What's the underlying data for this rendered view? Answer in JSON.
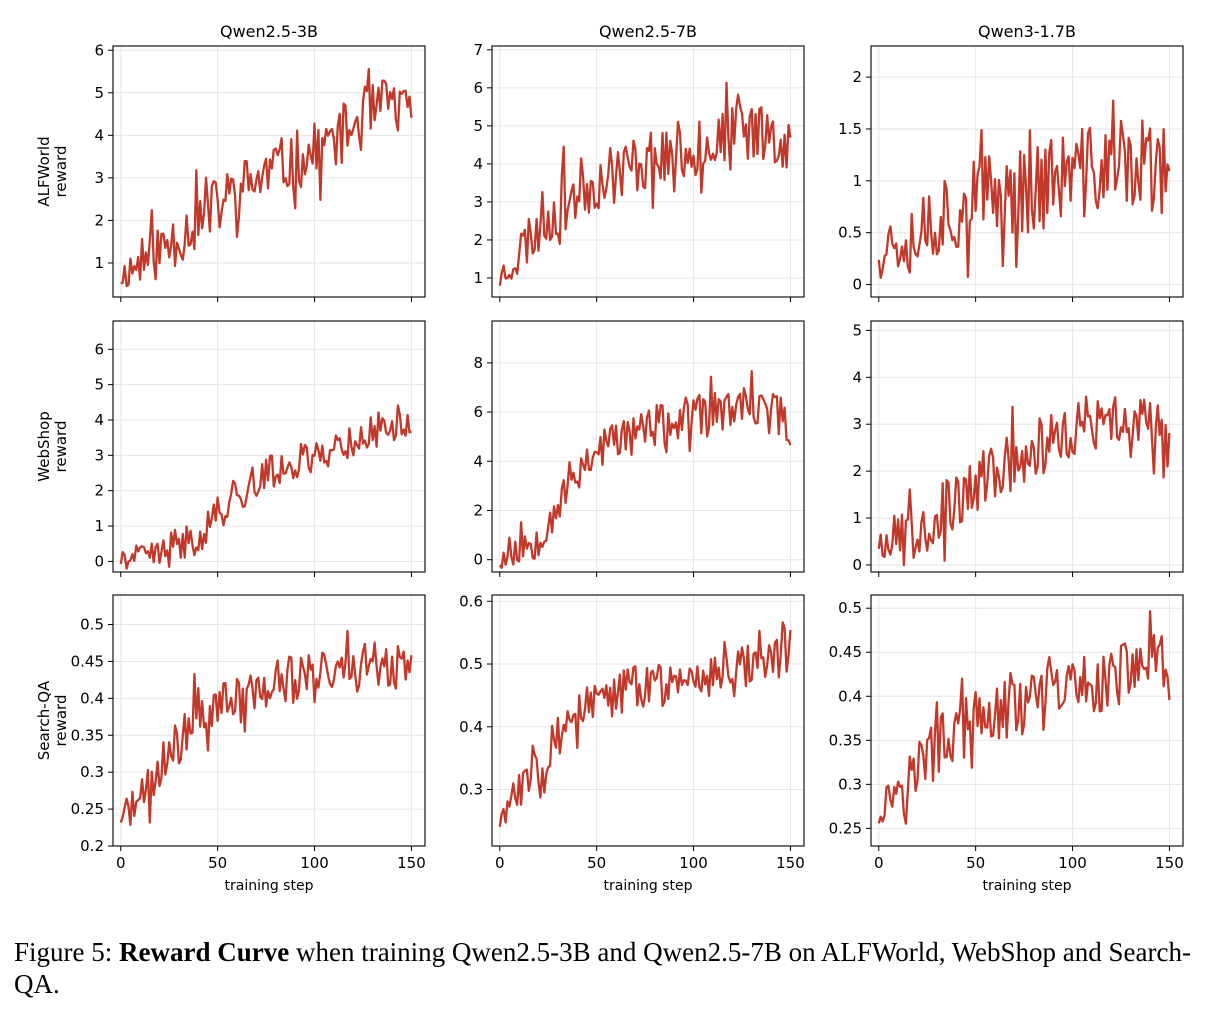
{
  "figure": {
    "caption_label": "Figure 5:",
    "caption_bold": "Reward Curve",
    "caption_text": " when training Qwen2.5-3B and Qwen2.5-7B on ALFWorld, WebShop and Search-QA."
  },
  "line_color": "#c0392b",
  "chart_data": [
    {
      "type": "line",
      "title": "Qwen2.5-3B",
      "ylabel": "ALFWorld reward",
      "xlabel": "",
      "xlim": [
        -4,
        157
      ],
      "ylim": [
        0.2,
        6.1
      ],
      "yticks": [
        1,
        2,
        3,
        4,
        5,
        6
      ],
      "xticks": [
        0,
        50,
        100,
        150
      ],
      "grid": true,
      "seed": 11,
      "series_anchors": [
        [
          0,
          0.7
        ],
        [
          20,
          1.3
        ],
        [
          40,
          2.0
        ],
        [
          60,
          2.7
        ],
        [
          80,
          3.2
        ],
        [
          100,
          3.6
        ],
        [
          120,
          4.2
        ],
        [
          140,
          4.8
        ],
        [
          150,
          4.3
        ]
      ],
      "noise": 0.7
    },
    {
      "type": "line",
      "title": "Qwen2.5-7B",
      "ylabel": "",
      "xlabel": "",
      "xlim": [
        -4,
        157
      ],
      "ylim": [
        0.5,
        7.1
      ],
      "yticks": [
        1,
        2,
        3,
        4,
        5,
        6,
        7
      ],
      "xticks": [
        0,
        50,
        100,
        150
      ],
      "grid": true,
      "seed": 23,
      "series_anchors": [
        [
          0,
          1.0
        ],
        [
          10,
          1.7
        ],
        [
          20,
          2.4
        ],
        [
          30,
          2.9
        ],
        [
          40,
          3.3
        ],
        [
          60,
          3.8
        ],
        [
          80,
          4.2
        ],
        [
          100,
          4.4
        ],
        [
          120,
          4.8
        ],
        [
          140,
          4.9
        ],
        [
          150,
          4.5
        ]
      ],
      "noise": 0.8
    },
    {
      "type": "line",
      "title": "Qwen3-1.7B",
      "ylabel": "",
      "xlabel": "",
      "xlim": [
        -4,
        157
      ],
      "ylim": [
        -0.12,
        2.3
      ],
      "yticks": [
        0.0,
        0.5,
        1.0,
        1.5,
        2.0
      ],
      "xticks": [
        0,
        50,
        100,
        150
      ],
      "grid": true,
      "seed": 37,
      "series_anchors": [
        [
          0,
          0.35
        ],
        [
          20,
          0.55
        ],
        [
          40,
          0.75
        ],
        [
          60,
          0.85
        ],
        [
          80,
          0.95
        ],
        [
          100,
          1.05
        ],
        [
          120,
          1.15
        ],
        [
          140,
          1.15
        ],
        [
          150,
          0.8
        ]
      ],
      "noise": 0.45
    },
    {
      "type": "line",
      "title": "",
      "ylabel": "WebShop reward",
      "xlabel": "",
      "xlim": [
        -4,
        157
      ],
      "ylim": [
        -0.3,
        6.8
      ],
      "yticks": [
        0,
        1,
        2,
        3,
        4,
        5,
        6
      ],
      "xticks": [
        0,
        50,
        100,
        150
      ],
      "grid": true,
      "seed": 41,
      "series_anchors": [
        [
          0,
          0.05
        ],
        [
          20,
          0.2
        ],
        [
          40,
          0.7
        ],
        [
          50,
          1.4
        ],
        [
          60,
          1.9
        ],
        [
          80,
          2.6
        ],
        [
          100,
          3.0
        ],
        [
          120,
          3.4
        ],
        [
          140,
          3.9
        ],
        [
          150,
          4.0
        ]
      ],
      "noise": 0.5
    },
    {
      "type": "line",
      "title": "",
      "ylabel": "",
      "xlabel": "",
      "xlim": [
        -4,
        157
      ],
      "ylim": [
        -0.5,
        9.7
      ],
      "yticks": [
        0,
        2,
        4,
        6,
        8
      ],
      "xticks": [
        0,
        50,
        100,
        150
      ],
      "grid": true,
      "seed": 53,
      "series_anchors": [
        [
          0,
          0.0
        ],
        [
          10,
          0.4
        ],
        [
          20,
          1.0
        ],
        [
          30,
          2.3
        ],
        [
          40,
          3.6
        ],
        [
          50,
          4.5
        ],
        [
          70,
          5.2
        ],
        [
          90,
          5.6
        ],
        [
          120,
          6.1
        ],
        [
          140,
          6.0
        ],
        [
          150,
          5.6
        ]
      ],
      "noise": 0.9
    },
    {
      "type": "line",
      "title": "",
      "ylabel": "",
      "xlabel": "",
      "xlim": [
        -4,
        157
      ],
      "ylim": [
        -0.15,
        5.2
      ],
      "yticks": [
        0,
        1,
        2,
        3,
        4,
        5
      ],
      "xticks": [
        0,
        50,
        100,
        150
      ],
      "grid": true,
      "seed": 67,
      "series_anchors": [
        [
          0,
          0.5
        ],
        [
          20,
          0.8
        ],
        [
          40,
          1.3
        ],
        [
          60,
          2.0
        ],
        [
          80,
          2.5
        ],
        [
          100,
          2.8
        ],
        [
          120,
          3.0
        ],
        [
          140,
          2.9
        ],
        [
          150,
          3.0
        ]
      ],
      "noise": 0.65
    },
    {
      "type": "line",
      "title": "",
      "ylabel": "Search-QA reward",
      "xlabel": "training step",
      "xlim": [
        -4,
        157
      ],
      "ylim": [
        0.2,
        0.54
      ],
      "yticks": [
        0.2,
        0.25,
        0.3,
        0.35,
        0.4,
        0.45,
        0.5
      ],
      "xticks": [
        0,
        50,
        100,
        150
      ],
      "grid": true,
      "seed": 71,
      "series_anchors": [
        [
          0,
          0.24
        ],
        [
          10,
          0.26
        ],
        [
          20,
          0.3
        ],
        [
          30,
          0.34
        ],
        [
          40,
          0.38
        ],
        [
          60,
          0.4
        ],
        [
          80,
          0.42
        ],
        [
          100,
          0.43
        ],
        [
          120,
          0.44
        ],
        [
          140,
          0.45
        ],
        [
          150,
          0.44
        ]
      ],
      "noise": 0.035
    },
    {
      "type": "line",
      "title": "",
      "ylabel": "",
      "xlabel": "training step",
      "xlim": [
        -4,
        157
      ],
      "ylim": [
        0.21,
        0.61
      ],
      "yticks": [
        0.3,
        0.4,
        0.5,
        0.6
      ],
      "xticks": [
        0,
        50,
        100,
        150
      ],
      "grid": true,
      "seed": 83,
      "series_anchors": [
        [
          0,
          0.25
        ],
        [
          10,
          0.3
        ],
        [
          20,
          0.35
        ],
        [
          40,
          0.42
        ],
        [
          60,
          0.45
        ],
        [
          80,
          0.47
        ],
        [
          100,
          0.48
        ],
        [
          120,
          0.5
        ],
        [
          140,
          0.51
        ],
        [
          150,
          0.53
        ]
      ],
      "noise": 0.04
    },
    {
      "type": "line",
      "title": "",
      "ylabel": "",
      "xlabel": "training step",
      "xlim": [
        -4,
        157
      ],
      "ylim": [
        0.23,
        0.515
      ],
      "yticks": [
        0.25,
        0.3,
        0.35,
        0.4,
        0.45,
        0.5
      ],
      "xticks": [
        0,
        50,
        100,
        150
      ],
      "grid": true,
      "seed": 97,
      "series_anchors": [
        [
          0,
          0.27
        ],
        [
          10,
          0.3
        ],
        [
          20,
          0.32
        ],
        [
          40,
          0.36
        ],
        [
          60,
          0.38
        ],
        [
          80,
          0.39
        ],
        [
          100,
          0.41
        ],
        [
          120,
          0.42
        ],
        [
          140,
          0.44
        ],
        [
          150,
          0.43
        ]
      ],
      "noise": 0.035
    }
  ]
}
